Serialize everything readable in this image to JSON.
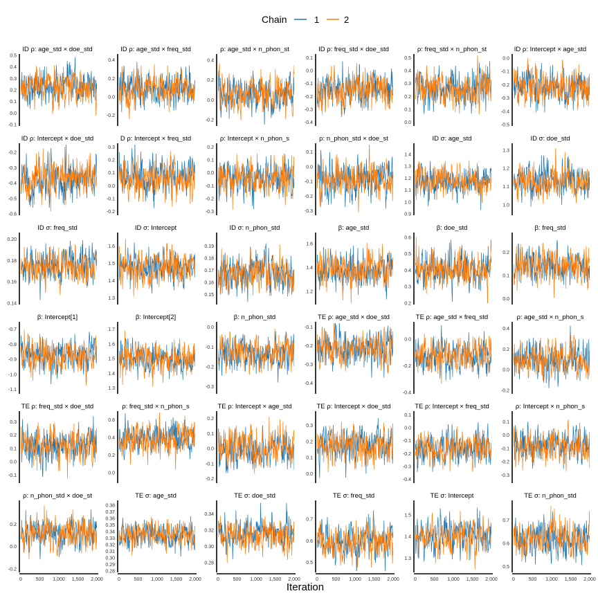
{
  "legend": {
    "title": "Chain",
    "entries": [
      {
        "label": "1",
        "color": "#1f77b4"
      },
      {
        "label": "2",
        "color": "#ff7f0e"
      }
    ]
  },
  "x_axis_label": "Iteration",
  "x_ticks": [
    "0",
    "500",
    "1,000",
    "1,500",
    "2,000"
  ],
  "chart_data": {
    "type": "line",
    "description_x": "Iteration",
    "x_range": [
      0,
      2000
    ],
    "legend_position": "top",
    "series_names": [
      "1",
      "2"
    ],
    "panels": [
      {
        "title": "ID ρ: age_std × doe_std",
        "yticks": [
          "-0.1",
          "0.0",
          "0.1",
          "0.2",
          "0.3",
          "0.4",
          "0.5"
        ],
        "ylim": [
          -0.1,
          0.5
        ],
        "center": 0.22,
        "sd": 0.08
      },
      {
        "title": "ID ρ: age_std × freq_std",
        "yticks": [
          "-0.2",
          "0.0",
          "0.2",
          "0.4"
        ],
        "ylim": [
          -0.3,
          0.45
        ],
        "center": 0.08,
        "sd": 0.1
      },
      {
        "title": "ρ: age_std × n_phon_st",
        "yticks": [
          "-0.2",
          "0.0",
          "0.2",
          "0.4"
        ],
        "ylim": [
          -0.25,
          0.45
        ],
        "center": 0.06,
        "sd": 0.1
      },
      {
        "title": "ID ρ: freq_std × doe_std",
        "yticks": [
          "-0.4",
          "-0.3",
          "-0.2",
          "-0.1",
          "0.0",
          "0.1"
        ],
        "ylim": [
          -0.42,
          0.12
        ],
        "center": -0.15,
        "sd": 0.08
      },
      {
        "title": "ρ: freq_std × n_phon_st",
        "yticks": [
          "0.0",
          "0.1",
          "0.2",
          "0.3",
          "0.4",
          "0.5"
        ],
        "ylim": [
          -0.02,
          0.52
        ],
        "center": 0.26,
        "sd": 0.08
      },
      {
        "title": "ID ρ: Intercept × age_std",
        "yticks": [
          "-0.5",
          "-0.4",
          "-0.3",
          "-0.2",
          "-0.1",
          "0.0"
        ],
        "ylim": [
          -0.5,
          0.02
        ],
        "center": -0.22,
        "sd": 0.08
      },
      {
        "title": "ID ρ: Intercept × doe_std",
        "yticks": [
          "-0.6",
          "-0.5",
          "-0.4",
          "-0.3",
          "-0.2"
        ],
        "ylim": [
          -0.6,
          -0.15
        ],
        "center": -0.38,
        "sd": 0.07
      },
      {
        "title": "D ρ: Intercept × freq_std",
        "yticks": [
          "-0.2",
          "-0.1",
          "0.0",
          "0.1",
          "0.2",
          "0.3"
        ],
        "ylim": [
          -0.22,
          0.32
        ],
        "center": 0.06,
        "sd": 0.08
      },
      {
        "title": "ρ: Intercept × n_phon_s",
        "yticks": [
          "-0.3",
          "-0.2",
          "-0.1",
          "0.0",
          "0.1",
          "0.2"
        ],
        "ylim": [
          -0.32,
          0.22
        ],
        "center": -0.04,
        "sd": 0.08
      },
      {
        "title": "ρ: n_phon_std × doe_st",
        "yticks": [
          "-0.3",
          "-0.2",
          "-0.1",
          "0.0",
          "0.1"
        ],
        "ylim": [
          -0.32,
          0.15
        ],
        "center": -0.08,
        "sd": 0.07
      },
      {
        "title": "ID σ: age_std",
        "yticks": [
          "0.9",
          "1.0",
          "1.1",
          "1.2",
          "1.3",
          "1.4"
        ],
        "ylim": [
          0.9,
          1.48
        ],
        "center": 1.17,
        "sd": 0.07
      },
      {
        "title": "ID σ: doe_std",
        "yticks": [
          "1.0",
          "1.1",
          "1.2",
          "1.3"
        ],
        "ylim": [
          0.95,
          1.33
        ],
        "center": 1.13,
        "sd": 0.05
      },
      {
        "title": "ID σ: freq_std",
        "yticks": [
          "0.14",
          "0.16",
          "0.18",
          "0.20"
        ],
        "ylim": [
          0.14,
          0.205
        ],
        "center": 0.175,
        "sd": 0.009
      },
      {
        "title": "ID σ: Intercept",
        "yticks": [
          "1.3",
          "1.4",
          "1.5",
          "1.6"
        ],
        "ylim": [
          1.27,
          1.67
        ],
        "center": 1.48,
        "sd": 0.055
      },
      {
        "title": "ID σ: n_phon_std",
        "yticks": [
          "0.15",
          "0.16",
          "0.17",
          "0.18",
          "0.19"
        ],
        "ylim": [
          0.143,
          0.2
        ],
        "center": 0.168,
        "sd": 0.008
      },
      {
        "title": "β: age_std",
        "yticks": [
          "1.2",
          "1.4",
          "1.6"
        ],
        "ylim": [
          1.1,
          1.68
        ],
        "center": 1.38,
        "sd": 0.08
      },
      {
        "title": "β: doe_std",
        "yticks": [
          "0.2",
          "0.3",
          "0.4",
          "0.5",
          "0.6"
        ],
        "ylim": [
          0.2,
          0.62
        ],
        "center": 0.41,
        "sd": 0.06
      },
      {
        "title": "β: freq_std",
        "yticks": [
          "0.0",
          "0.1",
          "0.2"
        ],
        "ylim": [
          -0.02,
          0.28
        ],
        "center": 0.14,
        "sd": 0.04
      },
      {
        "title": "β: Intercept[1]",
        "yticks": [
          "-1.1",
          "-1.0",
          "-0.9",
          "-0.8",
          "-0.7"
        ],
        "ylim": [
          -1.12,
          -0.66
        ],
        "center": -0.88,
        "sd": 0.06
      },
      {
        "title": "β: Intercept[2]",
        "yticks": [
          "1.3",
          "1.4",
          "1.5",
          "1.6",
          "1.7"
        ],
        "ylim": [
          1.27,
          1.74
        ],
        "center": 1.5,
        "sd": 0.06
      },
      {
        "title": "β: n_phon_std",
        "yticks": [
          "-0.3",
          "-0.2",
          "-0.1",
          "0.0"
        ],
        "ylim": [
          -0.33,
          0.02
        ],
        "center": -0.13,
        "sd": 0.05
      },
      {
        "title": "TE ρ: age_std × doe_std",
        "yticks": [
          "-0.4",
          "-0.3",
          "-0.2",
          "-0.1"
        ],
        "ylim": [
          -0.45,
          -0.08
        ],
        "center": -0.22,
        "sd": 0.05
      },
      {
        "title": "TE ρ: age_std × freq_std",
        "yticks": [
          "-0.4",
          "-0.2",
          "0.0"
        ],
        "ylim": [
          -0.4,
          0.12
        ],
        "center": -0.12,
        "sd": 0.07
      },
      {
        "title": "ρ: age_std × n_phon_s",
        "yticks": [
          "-0.2",
          "0.0",
          "0.2",
          "0.4"
        ],
        "ylim": [
          -0.22,
          0.45
        ],
        "center": 0.1,
        "sd": 0.09
      },
      {
        "title": "TE ρ: freq_std × doe_std",
        "yticks": [
          "-0.1",
          "0.0",
          "0.1",
          "0.2",
          "0.3"
        ],
        "ylim": [
          -0.15,
          0.37
        ],
        "center": 0.12,
        "sd": 0.08
      },
      {
        "title": "ρ: freq_std × n_phon_s",
        "yticks": [
          "0.0",
          "0.2",
          "0.4",
          "0.6"
        ],
        "ylim": [
          -0.1,
          0.68
        ],
        "center": 0.38,
        "sd": 0.1
      },
      {
        "title": "TE ρ: Intercept × age_std",
        "yticks": [
          "-0.2",
          "-0.1",
          "0.0",
          "0.1",
          "0.2"
        ],
        "ylim": [
          -0.22,
          0.24
        ],
        "center": 0.0,
        "sd": 0.07
      },
      {
        "title": "TE ρ: Intercept × doe_std",
        "yticks": [
          "0.0",
          "0.1",
          "0.2",
          "0.3"
        ],
        "ylim": [
          -0.05,
          0.38
        ],
        "center": 0.18,
        "sd": 0.06
      },
      {
        "title": "TE ρ: Intercept × freq_std",
        "yticks": [
          "-0.4",
          "-0.3",
          "-0.2",
          "-0.1",
          "0.0",
          "0.1"
        ],
        "ylim": [
          -0.42,
          0.12
        ],
        "center": -0.15,
        "sd": 0.07
      },
      {
        "title": "ρ: Intercept × n_phon_s",
        "yticks": [
          "-0.3",
          "-0.2",
          "-0.1",
          "0.0",
          "0.1"
        ],
        "ylim": [
          -0.35,
          0.17
        ],
        "center": -0.08,
        "sd": 0.07
      },
      {
        "title": "ρ: n_phon_std × doe_st",
        "yticks": [
          "-0.2",
          "0.0",
          "0.2"
        ],
        "ylim": [
          -0.22,
          0.4
        ],
        "center": 0.12,
        "sd": 0.08
      },
      {
        "title": "TE σ: age_std",
        "yticks": [
          "0.28",
          "0.29",
          "0.30",
          "0.31",
          "0.32",
          "0.33",
          "0.34",
          "0.35",
          "0.36",
          "0.37",
          "0.38"
        ],
        "ylim": [
          0.28,
          0.385
        ],
        "center": 0.335,
        "sd": 0.012
      },
      {
        "title": "TE σ: doe_std",
        "yticks": [
          "0.28",
          "0.30",
          "0.32",
          "0.34"
        ],
        "ylim": [
          0.27,
          0.355
        ],
        "center": 0.315,
        "sd": 0.011
      },
      {
        "title": "TE σ: freq_std",
        "yticks": [
          "0.5",
          "0.6",
          "0.7"
        ],
        "ylim": [
          0.46,
          0.78
        ],
        "center": 0.6,
        "sd": 0.045
      },
      {
        "title": "TE σ: Intercept",
        "yticks": [
          "1.3",
          "1.4",
          "1.5"
        ],
        "ylim": [
          1.24,
          1.56
        ],
        "center": 1.4,
        "sd": 0.045
      },
      {
        "title": "TE σ: n_phon_std",
        "yticks": [
          "0.5",
          "0.6",
          "0.7"
        ],
        "ylim": [
          0.48,
          0.78
        ],
        "center": 0.62,
        "sd": 0.045
      }
    ]
  }
}
